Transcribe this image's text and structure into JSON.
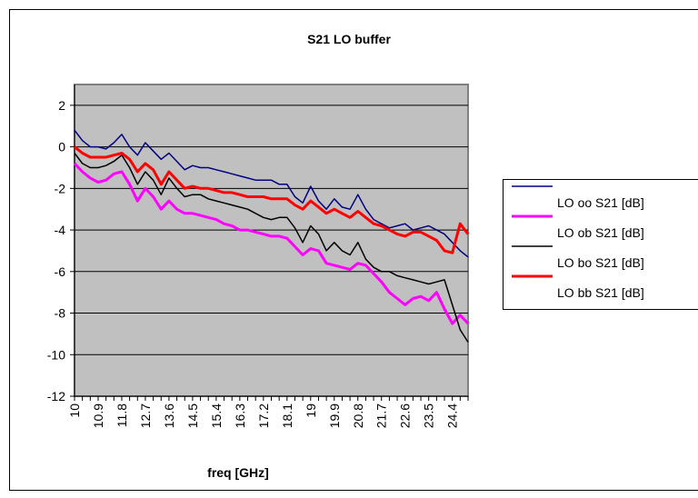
{
  "chart_data": {
    "type": "line",
    "title": "S21 LO buffer",
    "x_label": "freq [GHz]",
    "categories": [
      10,
      null,
      null,
      10.9,
      null,
      null,
      11.8,
      null,
      null,
      12.7,
      null,
      null,
      13.6,
      null,
      null,
      14.5,
      null,
      null,
      15.4,
      null,
      null,
      16.3,
      null,
      null,
      17.2,
      null,
      null,
      18.1,
      null,
      null,
      19,
      null,
      null,
      19.9,
      null,
      null,
      20.8,
      null,
      null,
      21.7,
      null,
      null,
      22.6,
      null,
      null,
      23.5,
      null,
      null,
      24.4,
      null,
      null
    ],
    "series": [
      {
        "name": "LO oo S21 [dB]",
        "color": "#000080",
        "width": 1.5,
        "values": [
          0.8,
          0.3,
          0.0,
          0.0,
          -0.1,
          0.2,
          0.6,
          0.0,
          -0.4,
          0.2,
          -0.2,
          -0.6,
          -0.3,
          -0.7,
          -1.1,
          -0.9,
          -1.0,
          -1.0,
          -1.1,
          -1.2,
          -1.3,
          -1.4,
          -1.5,
          -1.6,
          -1.6,
          -1.6,
          -1.8,
          -1.8,
          -2.4,
          -2.7,
          -1.9,
          -2.6,
          -3.0,
          -2.5,
          -2.9,
          -3.0,
          -2.3,
          -3.0,
          -3.5,
          -3.7,
          -3.9,
          -3.8,
          -3.7,
          -4.0,
          -3.9,
          -3.8,
          -4.0,
          -4.2,
          -4.6,
          -5.0,
          -5.3
        ]
      },
      {
        "name": "LO ob S21 [dB]",
        "color": "#ff00ff",
        "width": 3,
        "values": [
          -0.8,
          -1.2,
          -1.5,
          -1.7,
          -1.6,
          -1.3,
          -1.2,
          -1.8,
          -2.6,
          -2.0,
          -2.4,
          -3.0,
          -2.6,
          -3.0,
          -3.2,
          -3.2,
          -3.3,
          -3.4,
          -3.5,
          -3.7,
          -3.8,
          -4.0,
          -4.0,
          -4.1,
          -4.2,
          -4.3,
          -4.3,
          -4.4,
          -4.8,
          -5.2,
          -4.9,
          -5.0,
          -5.6,
          -5.7,
          -5.8,
          -5.9,
          -5.6,
          -5.7,
          -6.1,
          -6.5,
          -7.0,
          -7.3,
          -7.6,
          -7.3,
          -7.2,
          -7.4,
          -7.0,
          -7.8,
          -8.5,
          -8.1,
          -8.5
        ]
      },
      {
        "name": "LO bo S21 [dB]",
        "color": "#000000",
        "width": 1.5,
        "values": [
          -0.3,
          -0.8,
          -1.0,
          -1.0,
          -0.9,
          -0.7,
          -0.4,
          -1.0,
          -1.8,
          -1.2,
          -1.6,
          -2.3,
          -1.5,
          -2.0,
          -2.4,
          -2.3,
          -2.3,
          -2.5,
          -2.6,
          -2.7,
          -2.8,
          -2.9,
          -3.0,
          -3.2,
          -3.4,
          -3.5,
          -3.4,
          -3.4,
          -3.9,
          -4.6,
          -3.8,
          -4.2,
          -5.0,
          -4.6,
          -5.0,
          -5.2,
          -4.6,
          -5.4,
          -5.8,
          -6.0,
          -6.0,
          -6.2,
          -6.3,
          -6.4,
          -6.5,
          -6.6,
          -6.5,
          -6.4,
          -7.6,
          -8.8,
          -9.4
        ]
      },
      {
        "name": "LO bb S21 [dB]",
        "color": "#ff0000",
        "width": 3,
        "values": [
          0.0,
          -0.3,
          -0.5,
          -0.5,
          -0.5,
          -0.4,
          -0.3,
          -0.6,
          -1.2,
          -0.8,
          -1.1,
          -1.8,
          -1.2,
          -1.6,
          -2.0,
          -1.9,
          -2.0,
          -2.0,
          -2.1,
          -2.2,
          -2.2,
          -2.3,
          -2.4,
          -2.4,
          -2.4,
          -2.5,
          -2.5,
          -2.5,
          -2.8,
          -3.0,
          -2.6,
          -2.9,
          -3.2,
          -3.0,
          -3.2,
          -3.4,
          -3.1,
          -3.4,
          -3.7,
          -3.8,
          -4.0,
          -4.2,
          -4.3,
          -4.1,
          -4.1,
          -4.3,
          -4.5,
          -5.0,
          -5.1,
          -3.7,
          -4.2
        ]
      }
    ],
    "ylim": [
      -12,
      3
    ],
    "yticks": [
      -12,
      -10,
      -8,
      -6,
      -4,
      -2,
      0,
      2
    ],
    "grid": true,
    "legend": "right"
  }
}
